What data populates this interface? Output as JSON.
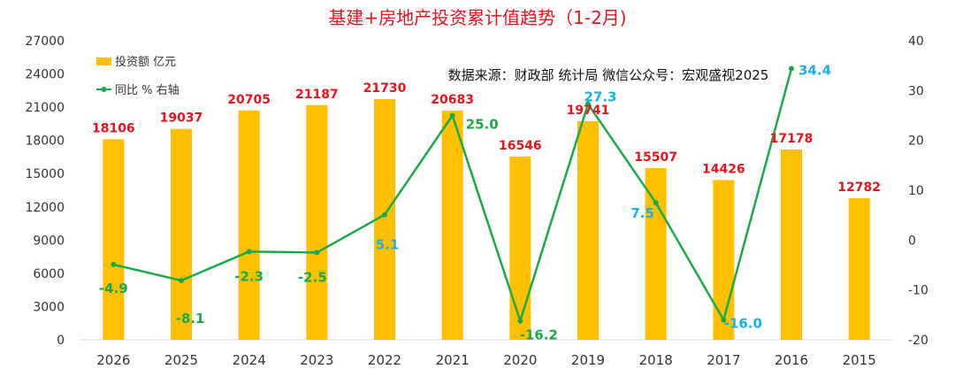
{
  "chart_data": {
    "type": "bar",
    "title": "基建+房地产投资累计值趋势（1-2月)",
    "annotation": "数据来源：财政部 统计局  微信公众号：宏观盛视2025",
    "categories": [
      "2026",
      "2025",
      "2024",
      "2023",
      "2022",
      "2021",
      "2020",
      "2019",
      "2018",
      "2017",
      "2016",
      "2015"
    ],
    "series": [
      {
        "name": "投资额 亿元",
        "type": "bar",
        "axis": "left",
        "color": "#FFC000",
        "values": [
          18106,
          19037,
          20705,
          21187,
          21730,
          20683,
          16546,
          19741,
          15507,
          14426,
          17178,
          12782
        ],
        "labels": [
          "18106",
          "19037",
          "20705",
          "21187",
          "21730",
          "20683",
          "16546",
          "19741",
          "15507",
          "14426",
          "17178",
          "12782"
        ],
        "label_color": "#E8131B"
      },
      {
        "name": "同比 % 右轴",
        "type": "line",
        "axis": "right",
        "color": "#1AAA4B",
        "values": [
          -4.9,
          -8.1,
          -2.3,
          -2.5,
          5.1,
          25.0,
          -16.2,
          27.3,
          7.5,
          -16.0,
          34.4,
          null
        ],
        "labels": [
          "-4.9",
          "-8.1",
          "-2.3",
          "-2.5",
          "5.1",
          "25.0",
          "-16.2",
          "27.3",
          "7.5",
          "-16.0",
          "34.4",
          ""
        ],
        "label_colors": [
          "#1AAA4B",
          "#1AAA4B",
          "#1AAA4B",
          "#1AAA4B",
          "#1AB0E8",
          "#1AAA4B",
          "#1AAA4B",
          "#1AB0E8",
          "#1AB0E8",
          "#1AB0E8",
          "#1AB0E8",
          "#1AB0E8"
        ]
      }
    ],
    "y_left": {
      "min": 0,
      "max": 27000,
      "step": 3000,
      "ticks": [
        "0",
        "3000",
        "6000",
        "9000",
        "12000",
        "15000",
        "18000",
        "21000",
        "24000",
        "27000"
      ]
    },
    "y_right": {
      "min": -20,
      "max": 40,
      "step": 10,
      "ticks": [
        "-20",
        "-10",
        "0",
        "10",
        "20",
        "30",
        "40"
      ]
    },
    "grid": false,
    "legend_position": "top-left"
  }
}
